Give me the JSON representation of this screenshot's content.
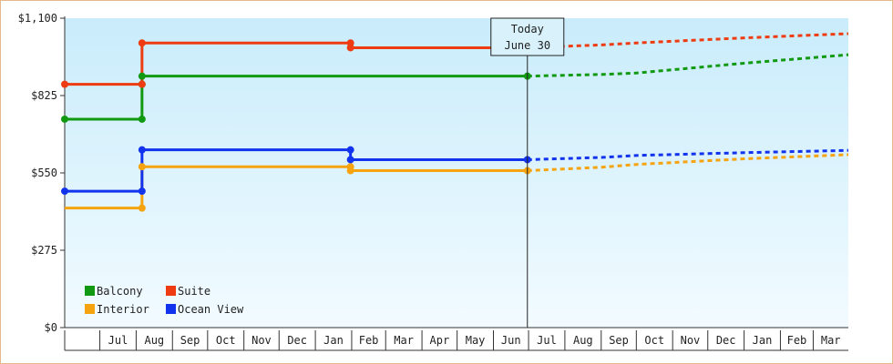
{
  "chart_data": {
    "type": "line",
    "step": true,
    "x_axis": {
      "months": [
        "Jul",
        "Aug",
        "Sep",
        "Oct",
        "Nov",
        "Dec",
        "Jan",
        "Feb",
        "Mar",
        "Apr",
        "May",
        "Jun",
        "Jul",
        "Aug",
        "Sep",
        "Oct",
        "Nov",
        "Dec",
        "Jan",
        "Feb",
        "Mar"
      ],
      "range": [
        "2019-06-01",
        "2021-03-31"
      ]
    },
    "y_axis": {
      "ticks": [
        0,
        275,
        550,
        825,
        1100
      ],
      "tick_labels": [
        "$0",
        "$275",
        "$550",
        "$825",
        "$1,100"
      ],
      "range": [
        0,
        1100
      ]
    },
    "grid": false,
    "legend_placement": "bottom-left",
    "today_marker": {
      "line1": "Today",
      "line2": "June 30",
      "date": "2020-06-30"
    },
    "series": [
      {
        "name": "Balcony",
        "color": "#119911",
        "points": [
          [
            "2019-06-01",
            741
          ],
          [
            "2019-08-06",
            741
          ],
          [
            "2019-08-06",
            894
          ],
          [
            "2020-06-30",
            894
          ]
        ],
        "forecast": [
          [
            "2020-06-30",
            894
          ],
          [
            "2020-09-01",
            900
          ],
          [
            "2020-10-01",
            905
          ],
          [
            "2021-01-01",
            940
          ],
          [
            "2021-03-31",
            970
          ]
        ]
      },
      {
        "name": "Suite",
        "color": "#ee3b11",
        "points": [
          [
            "2019-06-01",
            865
          ],
          [
            "2019-08-06",
            865
          ],
          [
            "2019-08-06",
            1012
          ],
          [
            "2020-01-31",
            1012
          ],
          [
            "2020-01-31",
            995
          ],
          [
            "2020-06-30",
            995
          ]
        ],
        "forecast": [
          [
            "2020-06-30",
            995
          ],
          [
            "2020-09-01",
            1005
          ],
          [
            "2020-10-01",
            1012
          ],
          [
            "2021-01-01",
            1030
          ],
          [
            "2021-03-31",
            1045
          ]
        ]
      },
      {
        "name": "Interior",
        "color": "#f5a30e",
        "points": [
          [
            "2019-06-01",
            425
          ],
          [
            "2019-08-06",
            425
          ],
          [
            "2019-08-06",
            572
          ],
          [
            "2020-01-31",
            572
          ],
          [
            "2020-01-31",
            558
          ],
          [
            "2020-06-30",
            558
          ]
        ],
        "forecast": [
          [
            "2020-06-30",
            558
          ],
          [
            "2020-09-01",
            570
          ],
          [
            "2020-10-01",
            580
          ],
          [
            "2021-01-01",
            600
          ],
          [
            "2021-03-31",
            615
          ]
        ]
      },
      {
        "name": "Ocean View",
        "color": "#1133ee",
        "points": [
          [
            "2019-06-01",
            485
          ],
          [
            "2019-08-06",
            485
          ],
          [
            "2019-08-06",
            632
          ],
          [
            "2020-01-31",
            632
          ],
          [
            "2020-01-31",
            597
          ],
          [
            "2020-06-30",
            597
          ]
        ],
        "forecast": [
          [
            "2020-06-30",
            597
          ],
          [
            "2020-09-01",
            605
          ],
          [
            "2020-10-01",
            612
          ],
          [
            "2021-01-01",
            622
          ],
          [
            "2021-03-31",
            630
          ]
        ]
      }
    ],
    "markers": {
      "Balcony": [
        [
          "2019-06-01",
          741
        ],
        [
          "2019-08-06",
          741
        ],
        [
          "2019-08-06",
          865
        ],
        [
          "2019-08-06",
          894
        ],
        [
          "2020-06-30",
          894
        ]
      ],
      "Suite": [
        [
          "2019-06-01",
          865
        ],
        [
          "2019-08-06",
          865
        ],
        [
          "2019-08-06",
          1012
        ],
        [
          "2020-01-31",
          1012
        ],
        [
          "2020-01-31",
          995
        ],
        [
          "2020-06-30",
          995
        ]
      ],
      "Interior": [
        [
          "2019-08-06",
          425
        ],
        [
          "2019-08-06",
          572
        ],
        [
          "2020-01-31",
          572
        ],
        [
          "2020-01-31",
          558
        ],
        [
          "2020-06-30",
          558
        ]
      ],
      "Ocean View": [
        [
          "2019-06-01",
          485
        ],
        [
          "2019-08-06",
          485
        ],
        [
          "2019-08-06",
          632
        ],
        [
          "2020-01-31",
          632
        ],
        [
          "2020-01-31",
          597
        ],
        [
          "2020-06-30",
          597
        ]
      ]
    },
    "legend": [
      {
        "label": "Balcony",
        "color": "#119911"
      },
      {
        "label": "Suite",
        "color": "#ee3b11"
      },
      {
        "label": "Interior",
        "color": "#f5a30e"
      },
      {
        "label": "Ocean View",
        "color": "#1133ee"
      }
    ]
  }
}
